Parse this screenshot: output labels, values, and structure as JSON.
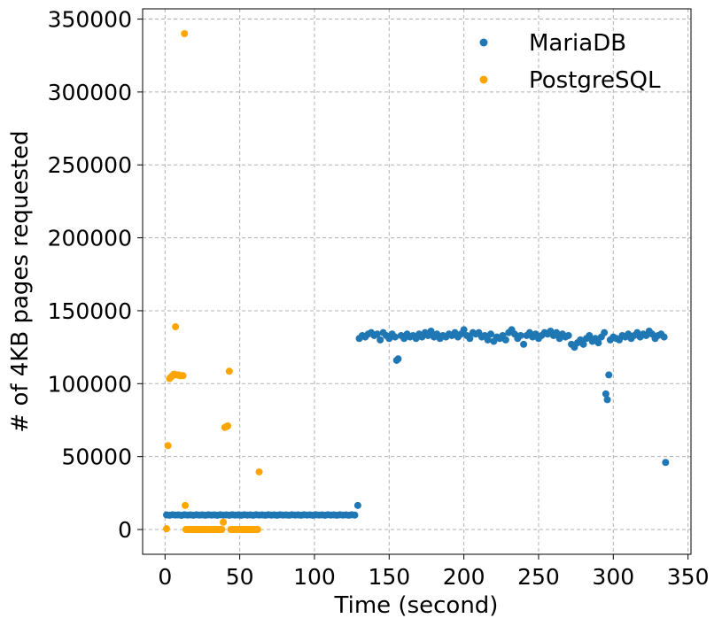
{
  "chart_data": {
    "type": "scatter",
    "title": "",
    "xlabel": "Time (second)",
    "ylabel": "# of 4KB pages requested",
    "xlim": [
      -15,
      352
    ],
    "ylim": [
      -17000,
      357000
    ],
    "xticks": [
      0,
      50,
      100,
      150,
      200,
      250,
      300,
      350
    ],
    "yticks": [
      0,
      50000,
      100000,
      150000,
      200000,
      250000,
      300000,
      350000
    ],
    "grid": true,
    "legend_position": "top-right",
    "series": [
      {
        "name": "MariaDB",
        "color": "#1f77b4",
        "points": [
          [
            1,
            10000
          ],
          [
            3,
            9800
          ],
          [
            5,
            10100
          ],
          [
            7,
            9900
          ],
          [
            9,
            10000
          ],
          [
            11,
            9700
          ],
          [
            13,
            10100
          ],
          [
            15,
            9900
          ],
          [
            17,
            10000
          ],
          [
            19,
            9800
          ],
          [
            21,
            10100
          ],
          [
            23,
            9900
          ],
          [
            25,
            10000
          ],
          [
            27,
            9800
          ],
          [
            29,
            10100
          ],
          [
            31,
            9900
          ],
          [
            33,
            10000
          ],
          [
            35,
            9800
          ],
          [
            37,
            10100
          ],
          [
            39,
            9900
          ],
          [
            41,
            10000
          ],
          [
            43,
            9800
          ],
          [
            45,
            10100
          ],
          [
            47,
            9900
          ],
          [
            49,
            10000
          ],
          [
            51,
            9800
          ],
          [
            53,
            10100
          ],
          [
            55,
            9900
          ],
          [
            57,
            10000
          ],
          [
            59,
            9800
          ],
          [
            61,
            10100
          ],
          [
            63,
            9900
          ],
          [
            65,
            10000
          ],
          [
            67,
            9800
          ],
          [
            69,
            10100
          ],
          [
            71,
            9900
          ],
          [
            73,
            10000
          ],
          [
            75,
            9800
          ],
          [
            77,
            10100
          ],
          [
            79,
            9900
          ],
          [
            81,
            10000
          ],
          [
            83,
            9800
          ],
          [
            85,
            10100
          ],
          [
            87,
            9900
          ],
          [
            89,
            10000
          ],
          [
            91,
            9800
          ],
          [
            93,
            10100
          ],
          [
            95,
            9900
          ],
          [
            97,
            10000
          ],
          [
            99,
            9800
          ],
          [
            101,
            10100
          ],
          [
            103,
            9900
          ],
          [
            105,
            10000
          ],
          [
            107,
            9800
          ],
          [
            109,
            10100
          ],
          [
            111,
            9900
          ],
          [
            113,
            10000
          ],
          [
            115,
            9800
          ],
          [
            117,
            10100
          ],
          [
            119,
            9900
          ],
          [
            121,
            10000
          ],
          [
            123,
            9800
          ],
          [
            125,
            10100
          ],
          [
            127,
            9900
          ],
          [
            129,
            16500
          ],
          [
            130,
            131000
          ],
          [
            132,
            133000
          ],
          [
            134,
            132000
          ],
          [
            136,
            134000
          ],
          [
            138,
            135000
          ],
          [
            140,
            133000
          ],
          [
            142,
            134000
          ],
          [
            144,
            130000
          ],
          [
            146,
            135000
          ],
          [
            148,
            133000
          ],
          [
            150,
            131000
          ],
          [
            152,
            134000
          ],
          [
            154,
            132000
          ],
          [
            155,
            116000
          ],
          [
            156,
            117000
          ],
          [
            158,
            133000
          ],
          [
            160,
            131000
          ],
          [
            162,
            134000
          ],
          [
            164,
            132000
          ],
          [
            166,
            133000
          ],
          [
            168,
            131000
          ],
          [
            170,
            134000
          ],
          [
            172,
            132000
          ],
          [
            174,
            135000
          ],
          [
            176,
            133000
          ],
          [
            178,
            136000
          ],
          [
            180,
            132000
          ],
          [
            182,
            134000
          ],
          [
            184,
            131000
          ],
          [
            186,
            133000
          ],
          [
            188,
            132000
          ],
          [
            190,
            134000
          ],
          [
            192,
            133000
          ],
          [
            194,
            135000
          ],
          [
            196,
            132000
          ],
          [
            198,
            134000
          ],
          [
            200,
            137000
          ],
          [
            202,
            133000
          ],
          [
            204,
            131000
          ],
          [
            206,
            135000
          ],
          [
            208,
            134000
          ],
          [
            210,
            135000
          ],
          [
            212,
            132000
          ],
          [
            214,
            133000
          ],
          [
            216,
            130000
          ],
          [
            218,
            134000
          ],
          [
            220,
            129000
          ],
          [
            222,
            132000
          ],
          [
            224,
            131000
          ],
          [
            226,
            133000
          ],
          [
            228,
            130000
          ],
          [
            230,
            135000
          ],
          [
            232,
            137000
          ],
          [
            234,
            134000
          ],
          [
            236,
            131000
          ],
          [
            238,
            133000
          ],
          [
            240,
            127000
          ],
          [
            242,
            133000
          ],
          [
            244,
            135000
          ],
          [
            246,
            132000
          ],
          [
            248,
            134000
          ],
          [
            250,
            131000
          ],
          [
            252,
            133000
          ],
          [
            254,
            135000
          ],
          [
            256,
            134000
          ],
          [
            258,
            136000
          ],
          [
            260,
            133000
          ],
          [
            262,
            135000
          ],
          [
            264,
            131000
          ],
          [
            266,
            134000
          ],
          [
            268,
            132000
          ],
          [
            270,
            133000
          ],
          [
            272,
            127000
          ],
          [
            274,
            125000
          ],
          [
            276,
            128000
          ],
          [
            278,
            130000
          ],
          [
            280,
            127000
          ],
          [
            282,
            131000
          ],
          [
            284,
            133000
          ],
          [
            286,
            129000
          ],
          [
            288,
            131000
          ],
          [
            290,
            128000
          ],
          [
            292,
            132000
          ],
          [
            294,
            135000
          ],
          [
            295,
            93000
          ],
          [
            296,
            89000
          ],
          [
            297,
            106000
          ],
          [
            298,
            130000
          ],
          [
            300,
            132000
          ],
          [
            302,
            131000
          ],
          [
            304,
            130000
          ],
          [
            306,
            133000
          ],
          [
            308,
            132000
          ],
          [
            310,
            134000
          ],
          [
            312,
            131000
          ],
          [
            314,
            133000
          ],
          [
            316,
            135000
          ],
          [
            318,
            132000
          ],
          [
            320,
            134000
          ],
          [
            322,
            133000
          ],
          [
            324,
            136000
          ],
          [
            326,
            134000
          ],
          [
            328,
            131000
          ],
          [
            330,
            133000
          ],
          [
            332,
            134000
          ],
          [
            334,
            132000
          ],
          [
            335,
            46000
          ]
        ]
      },
      {
        "name": "PostgreSQL",
        "color": "#ffa500",
        "points": [
          [
            1,
            500
          ],
          [
            2,
            57500
          ],
          [
            3,
            103500
          ],
          [
            4,
            104500
          ],
          [
            5,
            105500
          ],
          [
            6,
            106500
          ],
          [
            7,
            139000
          ],
          [
            8,
            106000
          ],
          [
            9,
            106000
          ],
          [
            10,
            105500
          ],
          [
            11,
            105500
          ],
          [
            12,
            105500
          ],
          [
            13,
            340000
          ],
          [
            13.5,
            16500
          ],
          [
            14,
            0
          ],
          [
            15,
            0
          ],
          [
            16,
            0
          ],
          [
            17,
            0
          ],
          [
            18,
            0
          ],
          [
            19,
            0
          ],
          [
            20,
            0
          ],
          [
            21,
            0
          ],
          [
            22,
            0
          ],
          [
            23,
            0
          ],
          [
            24,
            0
          ],
          [
            25,
            0
          ],
          [
            26,
            0
          ],
          [
            27,
            0
          ],
          [
            28,
            0
          ],
          [
            29,
            0
          ],
          [
            30,
            0
          ],
          [
            31,
            0
          ],
          [
            32,
            0
          ],
          [
            33,
            0
          ],
          [
            34,
            0
          ],
          [
            35,
            0
          ],
          [
            36,
            0
          ],
          [
            37,
            0
          ],
          [
            38,
            0
          ],
          [
            39,
            5000
          ],
          [
            40,
            70000
          ],
          [
            41,
            70500
          ],
          [
            42,
            71000
          ],
          [
            43,
            108500
          ],
          [
            44,
            0
          ],
          [
            45,
            0
          ],
          [
            46,
            0
          ],
          [
            47,
            0
          ],
          [
            48,
            0
          ],
          [
            49,
            0
          ],
          [
            50,
            0
          ],
          [
            51,
            0
          ],
          [
            52,
            0
          ],
          [
            53,
            0
          ],
          [
            54,
            0
          ],
          [
            55,
            0
          ],
          [
            56,
            0
          ],
          [
            57,
            0
          ],
          [
            58,
            0
          ],
          [
            59,
            0
          ],
          [
            60,
            0
          ],
          [
            61,
            0
          ],
          [
            62,
            0
          ],
          [
            63,
            39500
          ]
        ]
      }
    ]
  }
}
